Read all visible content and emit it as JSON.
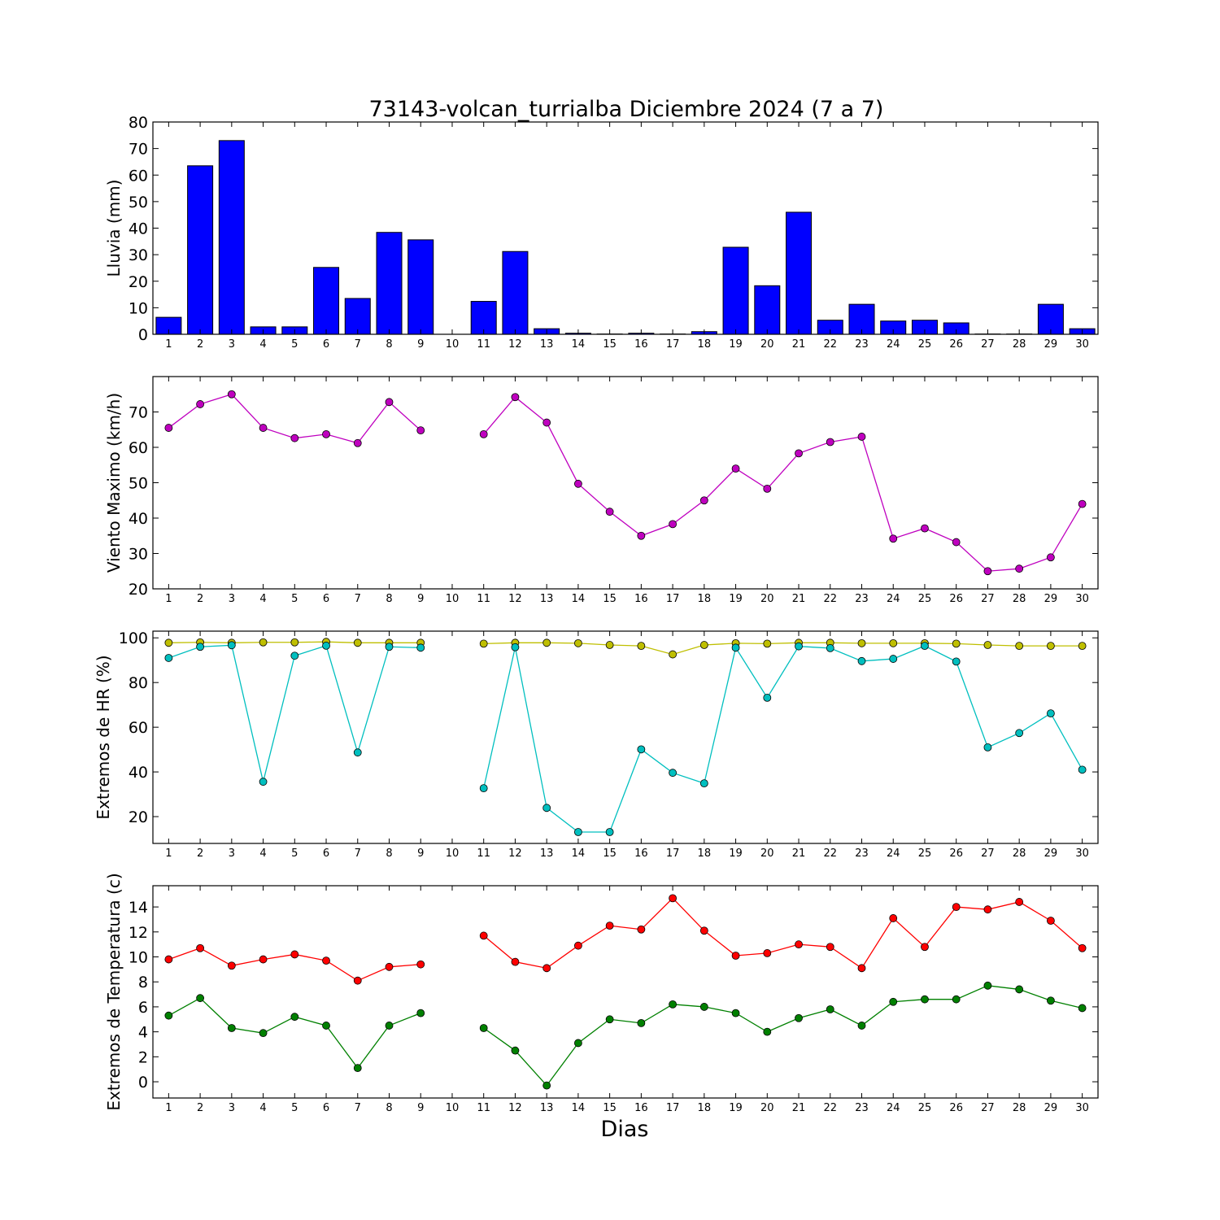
{
  "figure": {
    "title": "73143-volcan_turrialba Diciembre 2024  (7 a 7)",
    "xlabel": "Dias"
  },
  "chart_data": [
    {
      "type": "bar",
      "ylabel": "Lluvia (mm)",
      "ylim": [
        0,
        80
      ],
      "yticks": [
        0,
        10,
        20,
        30,
        40,
        50,
        60,
        70,
        80
      ],
      "xlim": [
        0.5,
        30.5
      ],
      "x": [
        1,
        2,
        3,
        4,
        5,
        6,
        7,
        8,
        9,
        10,
        11,
        12,
        13,
        14,
        15,
        16,
        17,
        18,
        19,
        20,
        21,
        22,
        23,
        24,
        25,
        26,
        27,
        28,
        29,
        30
      ],
      "xticks": [
        1,
        2,
        3,
        4,
        5,
        6,
        7,
        8,
        9,
        10,
        11,
        12,
        13,
        14,
        15,
        16,
        17,
        18,
        19,
        20,
        21,
        22,
        23,
        24,
        25,
        26,
        27,
        28,
        29,
        30
      ],
      "grid": false,
      "series": [
        {
          "color": "#0000ff",
          "values": [
            6.4,
            63.5,
            73.0,
            2.8,
            2.8,
            25.2,
            13.5,
            38.4,
            35.6,
            null,
            12.4,
            31.2,
            2.1,
            0.4,
            0.1,
            0.4,
            0.1,
            1.0,
            32.8,
            18.3,
            46.0,
            5.3,
            11.3,
            5.0,
            5.3,
            4.3,
            0.1,
            0.1,
            11.3,
            2.1
          ]
        }
      ]
    },
    {
      "type": "line",
      "ylabel": "Viento Maximo (km/h)",
      "ylim": [
        20,
        80
      ],
      "yticks": [
        20,
        30,
        40,
        50,
        60,
        70
      ],
      "xlim": [
        0.5,
        30.5
      ],
      "x": [
        1,
        2,
        3,
        4,
        5,
        6,
        7,
        8,
        9,
        10,
        11,
        12,
        13,
        14,
        15,
        16,
        17,
        18,
        19,
        20,
        21,
        22,
        23,
        24,
        25,
        26,
        27,
        28,
        29,
        30
      ],
      "xticks": [
        1,
        2,
        3,
        4,
        5,
        6,
        7,
        8,
        9,
        10,
        11,
        12,
        13,
        14,
        15,
        16,
        17,
        18,
        19,
        20,
        21,
        22,
        23,
        24,
        25,
        26,
        27,
        28,
        29,
        30
      ],
      "grid": false,
      "series": [
        {
          "color": "#bf00bf",
          "values": [
            65.5,
            72.2,
            75.0,
            65.5,
            62.6,
            63.7,
            61.2,
            72.8,
            64.8,
            null,
            63.7,
            74.2,
            67.0,
            49.7,
            41.8,
            35.0,
            38.3,
            45.0,
            54.0,
            48.3,
            58.3,
            61.5,
            63.0,
            34.2,
            37.1,
            33.2,
            25.0,
            25.7,
            28.9,
            44.0
          ]
        }
      ]
    },
    {
      "type": "line",
      "ylabel": "Extremos de HR (%)",
      "ylim": [
        8,
        103
      ],
      "yticks": [
        20,
        40,
        60,
        80,
        100
      ],
      "xlim": [
        0.5,
        30.5
      ],
      "x": [
        1,
        2,
        3,
        4,
        5,
        6,
        7,
        8,
        9,
        10,
        11,
        12,
        13,
        14,
        15,
        16,
        17,
        18,
        19,
        20,
        21,
        22,
        23,
        24,
        25,
        26,
        27,
        28,
        29,
        30
      ],
      "xticks": [
        1,
        2,
        3,
        4,
        5,
        6,
        7,
        8,
        9,
        10,
        11,
        12,
        13,
        14,
        15,
        16,
        17,
        18,
        19,
        20,
        21,
        22,
        23,
        24,
        25,
        26,
        27,
        28,
        29,
        30
      ],
      "grid": false,
      "series": [
        {
          "color": "#bfbf00",
          "values": [
            97.8,
            98.0,
            97.8,
            98.0,
            98.0,
            98.2,
            97.8,
            97.8,
            97.8,
            null,
            97.4,
            97.8,
            97.8,
            97.6,
            96.8,
            96.4,
            92.6,
            96.8,
            97.6,
            97.4,
            97.8,
            97.8,
            97.6,
            97.6,
            97.6,
            97.4,
            96.8,
            96.4,
            96.4,
            96.4
          ]
        },
        {
          "color": "#00bfbf",
          "values": [
            91.0,
            96.0,
            96.7,
            35.6,
            92.0,
            96.5,
            48.7,
            96.0,
            95.6,
            null,
            32.7,
            95.8,
            23.9,
            13.1,
            13.1,
            50.1,
            39.6,
            34.9,
            95.6,
            73.2,
            96.2,
            95.4,
            89.6,
            90.6,
            96.4,
            89.4,
            51.0,
            57.4,
            66.2,
            41.0
          ]
        }
      ]
    },
    {
      "type": "line",
      "ylabel": "Extremos de Temperatura (c)",
      "ylim": [
        -1.3,
        15.7
      ],
      "yticks": [
        0,
        2,
        4,
        6,
        8,
        10,
        12,
        14
      ],
      "xlim": [
        0.5,
        30.5
      ],
      "x": [
        1,
        2,
        3,
        4,
        5,
        6,
        7,
        8,
        9,
        10,
        11,
        12,
        13,
        14,
        15,
        16,
        17,
        18,
        19,
        20,
        21,
        22,
        23,
        24,
        25,
        26,
        27,
        28,
        29,
        30
      ],
      "xticks": [
        1,
        2,
        3,
        4,
        5,
        6,
        7,
        8,
        9,
        10,
        11,
        12,
        13,
        14,
        15,
        16,
        17,
        18,
        19,
        20,
        21,
        22,
        23,
        24,
        25,
        26,
        27,
        28,
        29,
        30
      ],
      "grid": false,
      "series": [
        {
          "color": "#ff0000",
          "values": [
            9.8,
            10.7,
            9.3,
            9.8,
            10.2,
            9.7,
            8.1,
            9.2,
            9.4,
            null,
            11.7,
            9.6,
            9.1,
            10.9,
            12.5,
            12.2,
            14.7,
            12.1,
            10.1,
            10.3,
            11.0,
            10.8,
            9.1,
            13.1,
            10.8,
            14.0,
            13.8,
            14.4,
            12.9,
            10.7
          ]
        },
        {
          "color": "#008000",
          "values": [
            5.3,
            6.7,
            4.3,
            3.9,
            5.2,
            4.5,
            1.1,
            4.5,
            5.5,
            null,
            4.3,
            2.5,
            -0.3,
            3.1,
            5.0,
            4.7,
            6.2,
            6.0,
            5.5,
            4.0,
            5.1,
            5.8,
            4.5,
            6.4,
            6.6,
            6.6,
            7.7,
            7.4,
            6.5,
            5.9
          ]
        }
      ]
    }
  ]
}
